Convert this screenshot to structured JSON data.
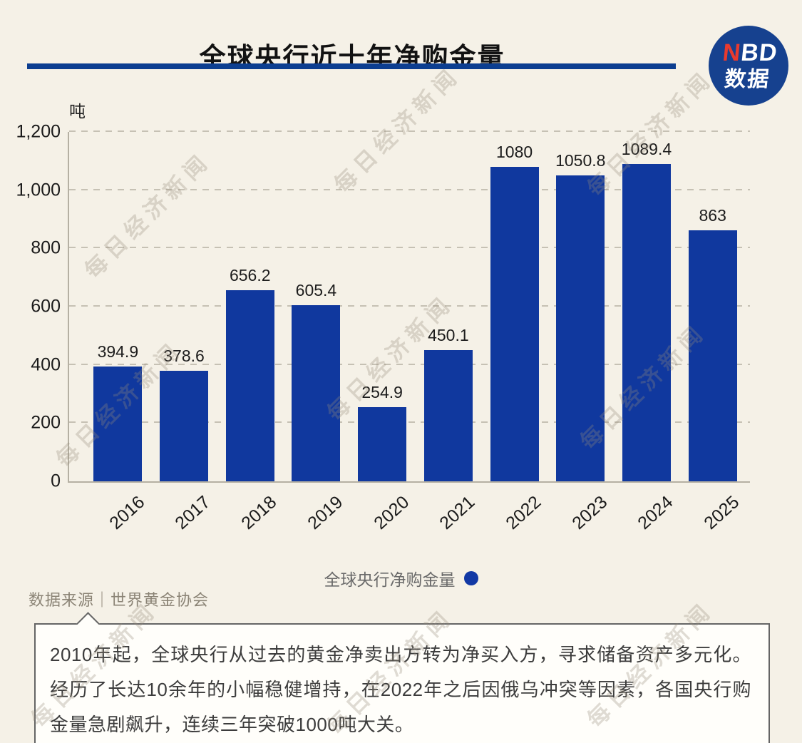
{
  "header": {
    "title": "全球央行近十年净购金量",
    "accent_color": "#0c3e90"
  },
  "logo": {
    "n": "N",
    "bd": "BD",
    "sub": "数据",
    "bg_color": "#16418f",
    "n_color": "#e83a2e"
  },
  "watermark": {
    "text": "每日经济新闻"
  },
  "chart_data": {
    "type": "bar",
    "title": "全球央行近十年净购金量",
    "unit": "吨",
    "categories": [
      "2016",
      "2017",
      "2018",
      "2019",
      "2020",
      "2021",
      "2022",
      "2023",
      "2024",
      "2025"
    ],
    "values": [
      394.9,
      378.6,
      656.2,
      605.4,
      254.9,
      450.1,
      1080,
      1050.8,
      1089.4,
      863
    ],
    "value_labels": [
      "394.9",
      "378.6",
      "656.2",
      "605.4",
      "254.9",
      "450.1",
      "1080",
      "1050.8",
      "1089.4",
      "863"
    ],
    "ylim": [
      0,
      1200
    ],
    "yticks": [
      0,
      200,
      400,
      600,
      800,
      1000,
      1200
    ],
    "ytick_labels": [
      "0",
      "200",
      "400",
      "600",
      "800",
      "1,000",
      "1,200"
    ],
    "bar_color": "#10389e",
    "grid": true,
    "grid_style": "dashed",
    "legend": {
      "label": "全球央行净购金量",
      "marker_color": "#1239a5",
      "position": "bottom-center"
    }
  },
  "footer": {
    "source": "数据来源｜世界黄金协会",
    "note": "2010年起，全球央行从过去的黄金净卖出方转为净买入方，寻求储备资产多元化。经历了长达10余年的小幅稳健增持，在2022年之后因俄乌冲突等因素，各国央行购金量急剧飙升，连续三年突破1000吨大关。"
  }
}
